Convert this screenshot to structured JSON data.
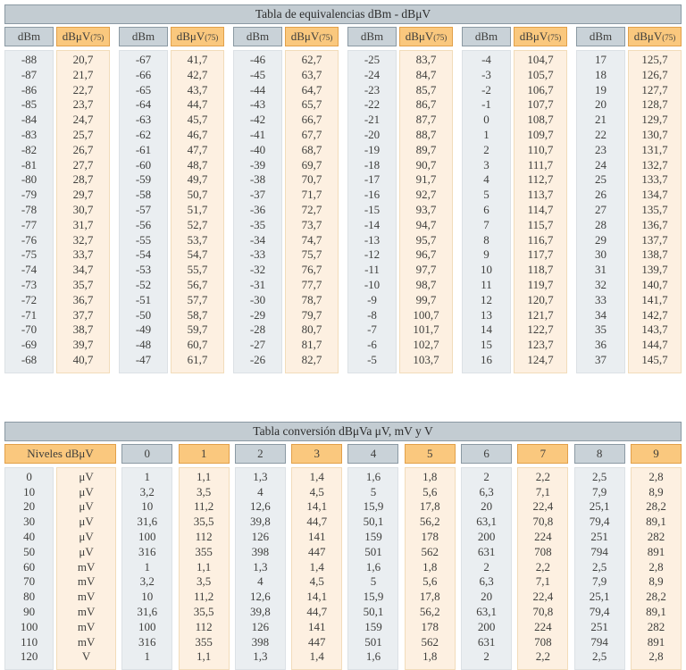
{
  "table1": {
    "title": "Tabla de equivalencias dBm - dBμV",
    "col_dbm_label": "dBm",
    "col_dbuv_label": "dBμV",
    "col_dbuv_sub": "(75)",
    "pairs": [
      {
        "dbm": [
          "-88",
          "-87",
          "-86",
          "-85",
          "-84",
          "-83",
          "-82",
          "-81",
          "-80",
          "-79",
          "-78",
          "-77",
          "-76",
          "-75",
          "-74",
          "-73",
          "-72",
          "-71",
          "-70",
          "-69",
          "-68"
        ],
        "dbuv": [
          "20,7",
          "21,7",
          "22,7",
          "23,7",
          "24,7",
          "25,7",
          "26,7",
          "27,7",
          "28,7",
          "29,7",
          "30,7",
          "31,7",
          "32,7",
          "33,7",
          "34,7",
          "35,7",
          "36,7",
          "37,7",
          "38,7",
          "39,7",
          "40,7"
        ]
      },
      {
        "dbm": [
          "-67",
          "-66",
          "-65",
          "-64",
          "-63",
          "-62",
          "-61",
          "-60",
          "-59",
          "-58",
          "-57",
          "-56",
          "-55",
          "-54",
          "-53",
          "-52",
          "-51",
          "-50",
          "-49",
          "-48",
          "-47"
        ],
        "dbuv": [
          "41,7",
          "42,7",
          "43,7",
          "44,7",
          "45,7",
          "46,7",
          "47,7",
          "48,7",
          "49,7",
          "50,7",
          "51,7",
          "52,7",
          "53,7",
          "54,7",
          "55,7",
          "56,7",
          "57,7",
          "58,7",
          "59,7",
          "60,7",
          "61,7"
        ]
      },
      {
        "dbm": [
          "-46",
          "-45",
          "-44",
          "-43",
          "-42",
          "-41",
          "-40",
          "-39",
          "-38",
          "-37",
          "-36",
          "-35",
          "-34",
          "-33",
          "-32",
          "-31",
          "-30",
          "-29",
          "-28",
          "-27",
          "-26"
        ],
        "dbuv": [
          "62,7",
          "63,7",
          "64,7",
          "65,7",
          "66,7",
          "67,7",
          "68,7",
          "69,7",
          "70,7",
          "71,7",
          "72,7",
          "73,7",
          "74,7",
          "75,7",
          "76,7",
          "77,7",
          "78,7",
          "79,7",
          "80,7",
          "81,7",
          "82,7"
        ]
      },
      {
        "dbm": [
          "-25",
          "-24",
          "-23",
          "-22",
          "-21",
          "-20",
          "-19",
          "-18",
          "-17",
          "-16",
          "-15",
          "-14",
          "-13",
          "-12",
          "-11",
          "-10",
          "-9",
          "-8",
          "-7",
          "-6",
          "-5"
        ],
        "dbuv": [
          "83,7",
          "84,7",
          "85,7",
          "86,7",
          "87,7",
          "88,7",
          "89,7",
          "90,7",
          "91,7",
          "92,7",
          "93,7",
          "94,7",
          "95,7",
          "96,7",
          "97,7",
          "98,7",
          "99,7",
          "100,7",
          "101,7",
          "102,7",
          "103,7"
        ]
      },
      {
        "dbm": [
          "-4",
          "-3",
          "-2",
          "-1",
          "0",
          "1",
          "2",
          "3",
          "4",
          "5",
          "6",
          "7",
          "8",
          "9",
          "10",
          "11",
          "12",
          "13",
          "14",
          "15",
          "16"
        ],
        "dbuv": [
          "104,7",
          "105,7",
          "106,7",
          "107,7",
          "108,7",
          "109,7",
          "110,7",
          "111,7",
          "112,7",
          "113,7",
          "114,7",
          "115,7",
          "116,7",
          "117,7",
          "118,7",
          "119,7",
          "120,7",
          "121,7",
          "122,7",
          "123,7",
          "124,7"
        ]
      },
      {
        "dbm": [
          "17",
          "18",
          "19",
          "20",
          "21",
          "22",
          "23",
          "24",
          "25",
          "26",
          "27",
          "28",
          "29",
          "30",
          "31",
          "32",
          "33",
          "34",
          "35",
          "36",
          "37"
        ],
        "dbuv": [
          "125,7",
          "126,7",
          "127,7",
          "128,7",
          "129,7",
          "130,7",
          "131,7",
          "132,7",
          "133,7",
          "134,7",
          "135,7",
          "136,7",
          "137,7",
          "138,7",
          "139,7",
          "140,7",
          "141,7",
          "142,7",
          "143,7",
          "144,7",
          "145,7"
        ]
      }
    ]
  },
  "table2": {
    "title": "Tabla conversión dBμVa μV, mV y V",
    "niveles_label": "Niveles dBμV",
    "digit_headers": [
      "0",
      "1",
      "2",
      "3",
      "4",
      "5",
      "6",
      "7",
      "8",
      "9"
    ],
    "levels": [
      "0",
      "10",
      "20",
      "30",
      "40",
      "50",
      "60",
      "70",
      "80",
      "90",
      "100",
      "110",
      "120"
    ],
    "units": [
      "μV",
      "μV",
      "μV",
      "μV",
      "μV",
      "μV",
      "mV",
      "mV",
      "mV",
      "mV",
      "mV",
      "mV",
      "V"
    ],
    "columns": [
      [
        "1",
        "3,2",
        "10",
        "31,6",
        "100",
        "316",
        "1",
        "3,2",
        "10",
        "31,6",
        "100",
        "316",
        "1"
      ],
      [
        "1,1",
        "3,5",
        "11,2",
        "35,5",
        "112",
        "355",
        "1,1",
        "3,5",
        "11,2",
        "35,5",
        "112",
        "355",
        "1,1"
      ],
      [
        "1,3",
        "4",
        "12,6",
        "39,8",
        "126",
        "398",
        "1,3",
        "4",
        "12,6",
        "39,8",
        "126",
        "398",
        "1,3"
      ],
      [
        "1,4",
        "4,5",
        "14,1",
        "44,7",
        "141",
        "447",
        "1,4",
        "4,5",
        "14,1",
        "44,7",
        "141",
        "447",
        "1,4"
      ],
      [
        "1,6",
        "5",
        "15,9",
        "50,1",
        "159",
        "501",
        "1,6",
        "5",
        "15,9",
        "50,1",
        "159",
        "501",
        "1,6"
      ],
      [
        "1,8",
        "5,6",
        "17,8",
        "56,2",
        "178",
        "562",
        "1,8",
        "5,6",
        "17,8",
        "56,2",
        "178",
        "562",
        "1,8"
      ],
      [
        "2",
        "6,3",
        "20",
        "63,1",
        "200",
        "631",
        "2",
        "6,3",
        "20",
        "63,1",
        "200",
        "631",
        "2"
      ],
      [
        "2,2",
        "7,1",
        "22,4",
        "70,8",
        "224",
        "708",
        "2,2",
        "7,1",
        "22,4",
        "70,8",
        "224",
        "708",
        "2,2"
      ],
      [
        "2,5",
        "7,9",
        "25,1",
        "79,4",
        "251",
        "794",
        "2,5",
        "7,9",
        "25,1",
        "79,4",
        "251",
        "794",
        "2,5"
      ],
      [
        "2,8",
        "8,9",
        "28,2",
        "89,1",
        "282",
        "891",
        "2,8",
        "8,9",
        "28,2",
        "89,1",
        "282",
        "891",
        "2,8"
      ]
    ],
    "colors": {
      "header_gray": "#c9d2d8",
      "header_orange": "#fac87e",
      "body_gray": "#eaeef1",
      "body_orange": "#fdf0e1",
      "title_bar": "#c3ccd2"
    }
  }
}
